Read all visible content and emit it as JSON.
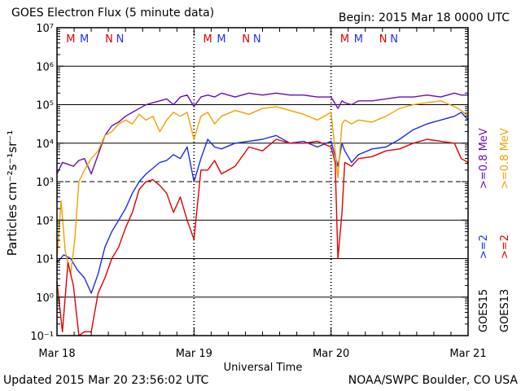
{
  "header": {
    "title": "GOES Electron Flux (5 minute data)",
    "begin": "Begin: 2015 Mar 18 0000 UTC"
  },
  "footer": {
    "updated": "Updated 2015 Mar 20 23:56:02 UTC",
    "credit": "NOAA/SWPC Boulder, CO USA"
  },
  "chart_data": {
    "type": "line",
    "title": "GOES Electron Flux (5 minute data)",
    "xlabel": "Universal Time",
    "ylabel": "Particles cm⁻²s⁻¹sr⁻¹",
    "yscale": "log",
    "ylim_exponents": [
      -1,
      7
    ],
    "y_tick_labels": [
      "10⁻¹",
      "10⁰",
      "10¹",
      "10²",
      "10³",
      "10⁴",
      "10⁵",
      "10⁶",
      "10⁷"
    ],
    "xlim_days": [
      0,
      3
    ],
    "x_tick_labels": [
      "Mar 18",
      "Mar 19",
      "Mar 20",
      "Mar 21"
    ],
    "grid": "horizontal lines at each decade, dashed at 10³",
    "magnetopause_markers": [
      "M",
      "M",
      "N",
      "N",
      "M",
      "M",
      "N",
      "N",
      "M",
      "M",
      "N",
      "N"
    ],
    "marker_colors": [
      "#e00000",
      "#2233dd",
      "#e00000",
      "#2233dd",
      "#e00000",
      "#2233dd",
      "#e00000",
      "#2233dd",
      "#e00000",
      "#2233dd",
      "#e00000",
      "#2233dd"
    ],
    "right_labels": {
      "goes15": "GOES15",
      "goes13": "GOES13",
      "g15_high": ">=0.8 MeV",
      "g15_low": ">=2",
      "g13_high": ">=0.8 MeV",
      "g13_low": ">=2"
    },
    "series": [
      {
        "name": "GOES15 >=0.8 MeV",
        "color": "#6a0dad",
        "x": [
          0,
          0.04,
          0.08,
          0.12,
          0.16,
          0.2,
          0.25,
          0.3,
          0.35,
          0.4,
          0.45,
          0.5,
          0.55,
          0.6,
          0.65,
          0.7,
          0.75,
          0.8,
          0.85,
          0.9,
          0.95,
          1.0,
          1.05,
          1.1,
          1.15,
          1.2,
          1.3,
          1.4,
          1.5,
          1.6,
          1.7,
          1.8,
          1.9,
          2.0,
          2.05,
          2.08,
          2.1,
          2.15,
          2.2,
          2.3,
          2.4,
          2.5,
          2.6,
          2.7,
          2.8,
          2.9,
          2.95,
          3.0
        ],
        "y": [
          3.2,
          3.5,
          3.45,
          3.4,
          3.55,
          3.6,
          3.2,
          3.7,
          4.2,
          4.45,
          4.55,
          4.7,
          4.8,
          4.9,
          5.0,
          5.05,
          5.1,
          5.15,
          5.0,
          5.2,
          5.25,
          4.95,
          5.2,
          5.25,
          5.2,
          5.3,
          5.2,
          5.3,
          5.25,
          5.3,
          5.25,
          5.25,
          5.2,
          5.2,
          4.9,
          5.1,
          5.05,
          5.0,
          5.1,
          5.1,
          5.15,
          5.2,
          5.2,
          5.25,
          5.2,
          5.3,
          5.25,
          5.25
        ]
      },
      {
        "name": "GOES15 >=2 MeV",
        "color": "#1a2ce8",
        "x": [
          0,
          0.05,
          0.1,
          0.15,
          0.2,
          0.25,
          0.3,
          0.35,
          0.4,
          0.45,
          0.5,
          0.55,
          0.6,
          0.65,
          0.7,
          0.75,
          0.8,
          0.85,
          0.9,
          0.95,
          1.0,
          1.05,
          1.1,
          1.15,
          1.2,
          1.3,
          1.4,
          1.5,
          1.6,
          1.7,
          1.8,
          1.9,
          2.0,
          2.05,
          2.08,
          2.1,
          2.15,
          2.2,
          2.3,
          2.4,
          2.5,
          2.6,
          2.7,
          2.8,
          2.9,
          2.95,
          3.0
        ],
        "y": [
          0.9,
          1.1,
          1.0,
          0.7,
          0.5,
          0.1,
          0.6,
          1.3,
          1.7,
          2.0,
          2.3,
          2.7,
          3.0,
          3.2,
          3.35,
          3.5,
          3.55,
          3.7,
          3.6,
          3.9,
          3.0,
          3.6,
          4.1,
          3.9,
          3.85,
          4.0,
          4.05,
          4.1,
          4.2,
          4.0,
          4.05,
          3.9,
          4.05,
          3.4,
          4.0,
          3.8,
          3.5,
          3.7,
          3.85,
          3.9,
          4.1,
          4.35,
          4.5,
          4.6,
          4.7,
          4.8,
          4.6
        ]
      },
      {
        "name": "GOES13 >=0.8 MeV",
        "color": "#f0a000",
        "x": [
          0,
          0.03,
          0.06,
          0.1,
          0.13,
          0.16,
          0.2,
          0.25,
          0.3,
          0.35,
          0.4,
          0.45,
          0.5,
          0.55,
          0.6,
          0.65,
          0.7,
          0.75,
          0.8,
          0.85,
          0.9,
          0.95,
          1.0,
          1.05,
          1.1,
          1.15,
          1.2,
          1.3,
          1.4,
          1.5,
          1.6,
          1.7,
          1.8,
          1.9,
          2.0,
          2.05,
          2.08,
          2.1,
          2.15,
          2.2,
          2.3,
          2.4,
          2.5,
          2.6,
          2.7,
          2.8,
          2.9,
          2.95,
          3.0
        ],
        "y": [
          1.0,
          2.5,
          1.2,
          0.6,
          1.5,
          3.0,
          3.3,
          3.6,
          3.8,
          4.2,
          4.3,
          4.5,
          4.6,
          4.5,
          4.75,
          4.6,
          4.7,
          4.3,
          4.6,
          4.8,
          4.7,
          4.8,
          4.1,
          4.7,
          4.8,
          4.5,
          4.7,
          4.85,
          4.75,
          4.9,
          4.95,
          4.85,
          4.75,
          4.6,
          4.8,
          3.1,
          4.5,
          4.6,
          4.5,
          4.6,
          4.55,
          4.7,
          4.9,
          5.0,
          5.05,
          5.1,
          4.95,
          4.85,
          4.7
        ]
      },
      {
        "name": "GOES13 >=2 MeV",
        "color": "#e00000",
        "x": [
          0,
          0.04,
          0.08,
          0.12,
          0.16,
          0.2,
          0.25,
          0.3,
          0.35,
          0.4,
          0.45,
          0.5,
          0.55,
          0.6,
          0.65,
          0.7,
          0.75,
          0.8,
          0.85,
          0.9,
          0.95,
          1.0,
          1.05,
          1.1,
          1.15,
          1.2,
          1.3,
          1.4,
          1.5,
          1.6,
          1.7,
          1.8,
          1.9,
          2.0,
          2.03,
          2.05,
          2.08,
          2.1,
          2.15,
          2.2,
          2.3,
          2.4,
          2.5,
          2.6,
          2.7,
          2.8,
          2.9,
          2.95,
          3.0
        ],
        "y": [
          0.4,
          -0.9,
          0.9,
          0.3,
          -1.0,
          -0.9,
          -0.9,
          0.1,
          0.5,
          1.0,
          1.3,
          1.8,
          2.2,
          2.8,
          3.0,
          3.05,
          2.9,
          2.7,
          2.2,
          2.6,
          2.0,
          1.5,
          3.3,
          3.3,
          3.55,
          3.2,
          3.4,
          3.9,
          3.8,
          4.1,
          4.0,
          4.0,
          4.05,
          3.9,
          3.5,
          1.0,
          2.2,
          3.5,
          3.4,
          3.6,
          3.65,
          3.8,
          3.85,
          4.0,
          4.1,
          4.05,
          4.0,
          3.6,
          3.5
        ]
      }
    ]
  }
}
